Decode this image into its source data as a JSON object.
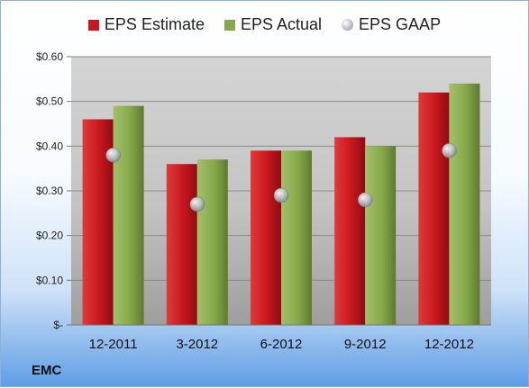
{
  "ticker": "EMC",
  "colors": {
    "estimate": "#c8171e",
    "actual": "#87a84a",
    "gaap": "#b9c0c8"
  },
  "chart_data": {
    "type": "bar",
    "categories": [
      "12-2011",
      "3-2012",
      "6-2012",
      "9-2012",
      "12-2012"
    ],
    "series": [
      {
        "name": "EPS Estimate",
        "values": [
          0.46,
          0.36,
          0.39,
          0.42,
          0.52
        ]
      },
      {
        "name": "EPS Actual",
        "values": [
          0.49,
          0.37,
          0.39,
          0.4,
          0.54
        ]
      },
      {
        "name": "EPS GAAP",
        "values": [
          0.38,
          0.27,
          0.29,
          0.28,
          0.39
        ]
      }
    ],
    "ylim": [
      0,
      0.6
    ],
    "yticks": [
      0,
      0.1,
      0.2,
      0.3,
      0.4,
      0.5,
      0.6
    ],
    "ytick_labels": [
      "$-",
      "$0.10",
      "$0.20",
      "$0.30",
      "$0.40",
      "$0.50",
      "$0.60"
    ],
    "grid": true,
    "legend": "top"
  }
}
